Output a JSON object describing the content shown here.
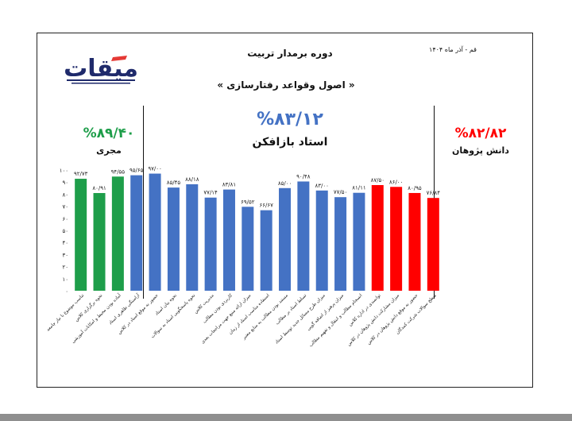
{
  "header": {
    "course_title": "دوره برمدار تربیت",
    "subject": "« اصول وقواعد رفتارسازی »",
    "place_date": "قم - آذر ماه ۱۴۰۴"
  },
  "logo": {
    "text": "میقات"
  },
  "groups": [
    {
      "name": "مجری",
      "score": "%۸۹/۴۰",
      "color": "#1e9e4a"
    },
    {
      "name": "استاد بازافکن",
      "score": "%۸۳/۱۲",
      "color": "#4472c4"
    },
    {
      "name": "دانش پژوهان",
      "score": "%۸۲/۸۲",
      "color": "#ff0000"
    }
  ],
  "chart_data": {
    "type": "bar",
    "ylim": [
      0,
      100
    ],
    "yticks": [
      "۰",
      "۱۰",
      "۲۰",
      "۳۰",
      "۴۰",
      "۵۰",
      "۶۰",
      "۷۰",
      "۸۰",
      "۹۰",
      "۱۰۰"
    ],
    "bars": [
      {
        "group": 0,
        "value": 92.73,
        "value_label": "۹۲/۷۳",
        "category": "تناسب موضوع با نیاز جامعه"
      },
      {
        "group": 0,
        "value": 80.91,
        "value_label": "۸۰/۹۱",
        "category": "نحوه برگزاری کلاس"
      },
      {
        "group": 0,
        "value": 94.55,
        "value_label": "۹۴/۵۵",
        "category": "آماده بودن محیط و امکانات آموزشی"
      },
      {
        "group": 1,
        "value": 95.65,
        "value_label": "۹۵/۶۵",
        "category": "آراستگی ظاهری استاد"
      },
      {
        "group": 1,
        "value": 97.0,
        "value_label": "۹۷/۰۰",
        "category": "حضور به موقع استاد در کلاس"
      },
      {
        "group": 1,
        "value": 85.45,
        "value_label": "۸۵/۴۵",
        "category": "نحوه بیان استاد"
      },
      {
        "group": 1,
        "value": 88.18,
        "value_label": "۸۸/۱۸",
        "category": "نحوه پاسخگویی استاد به سوالات"
      },
      {
        "group": 1,
        "value": 77.14,
        "value_label": "۷۷/۱۴",
        "category": "مدیریت کلاس"
      },
      {
        "group": 1,
        "value": 83.81,
        "value_label": "۸۳/۸۱",
        "category": "کاربردی بودن مطالب"
      },
      {
        "group": 1,
        "value": 69.52,
        "value_label": "۶۹/۵۲",
        "category": "میزان ارائه منبع جهت مراجعات بعدی"
      },
      {
        "group": 1,
        "value": 66.67,
        "value_label": "۶۶/۶۷",
        "category": "استفاده مناسب استاد از زمان"
      },
      {
        "group": 1,
        "value": 85.0,
        "value_label": "۸۵/۰۰",
        "category": "مستند بودن مطالب به منابع معتبر"
      },
      {
        "group": 1,
        "value": 90.48,
        "value_label": "۹۰/۴۸",
        "category": "تسلط استاد بر مطالب"
      },
      {
        "group": 1,
        "value": 83.0,
        "value_label": "۸۳/۰۰",
        "category": "میزان طرح مسائل جدید توسط استاد"
      },
      {
        "group": 1,
        "value": 77.5,
        "value_label": "۷۷/۵۰",
        "category": "میزان پرهیز از اضافه گویی"
      },
      {
        "group": 1,
        "value": 81.11,
        "value_label": "۸۱/۱۱",
        "category": "انسجام مطالب و انتقال و تفهیم مطالب"
      },
      {
        "group": 2,
        "value": 87.5,
        "value_label": "۸۷/۵۰",
        "category": "توانمندی در اداره کلاس"
      },
      {
        "group": 2,
        "value": 86.0,
        "value_label": "۸۶/۰۰",
        "category": "میزان مشارکت دانش پژوهان در کلاس"
      },
      {
        "group": 2,
        "value": 80.95,
        "value_label": "۸۰/۹۵",
        "category": "حضور به موقع دانش پژوهان در کلاس"
      },
      {
        "group": 2,
        "value": 76.84,
        "value_label": "۷۶/۸۴",
        "category": "سطح سوالات شرکت کنندگان"
      }
    ]
  }
}
